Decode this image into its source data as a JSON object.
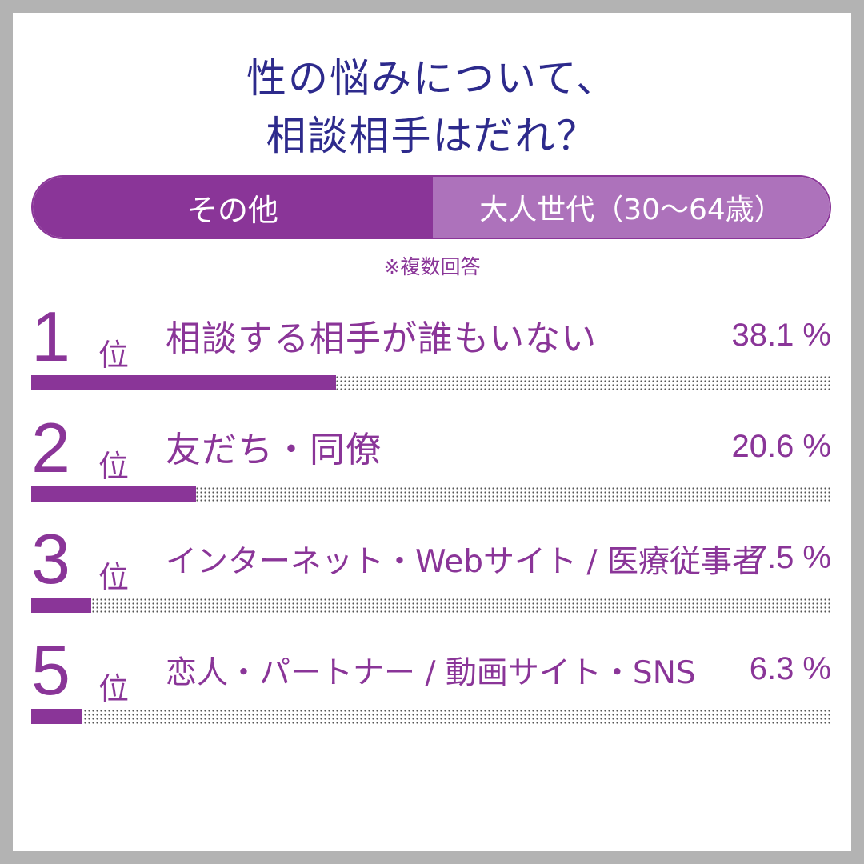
{
  "title": {
    "line1": "性の悩みについて、",
    "line2": "相談相手はだれ？"
  },
  "tabs": {
    "left": "その他",
    "right": "大人世代（30～64歳）"
  },
  "note": "※複数回答",
  "chart_data": {
    "type": "bar",
    "orientation": "horizontal",
    "xlim": [
      0,
      100
    ],
    "items": [
      {
        "rank": "1",
        "suffix": "位",
        "label": "相談する相手が誰もいない",
        "value": 38.1,
        "value_label": "38.1 %"
      },
      {
        "rank": "2",
        "suffix": "位",
        "label": "友だち・同僚",
        "value": 20.6,
        "value_label": "20.6 %"
      },
      {
        "rank": "3",
        "suffix": "位",
        "label": "インターネット・Webサイト / 医療従事者",
        "value": 7.5,
        "value_label": "7.5 %"
      },
      {
        "rank": "5",
        "suffix": "位",
        "label": "恋人・パートナー / 動画サイト・SNS",
        "value": 6.3,
        "value_label": "6.3 %"
      }
    ],
    "colors": {
      "bar": "#8a3598",
      "track_dots": "#555555",
      "title": "#2d2a8c"
    }
  }
}
